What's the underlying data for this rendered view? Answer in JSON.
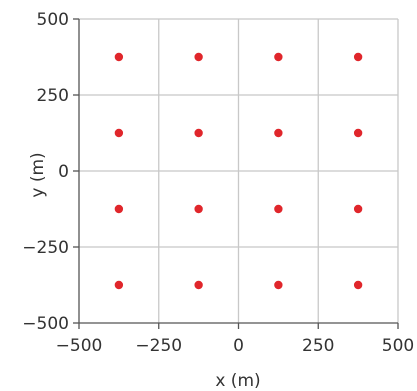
{
  "chart_data": {
    "type": "scatter",
    "xlabel": "x (m)",
    "ylabel": "y (m)",
    "xlim": [
      -500,
      500
    ],
    "ylim": [
      -500,
      500
    ],
    "grid": true,
    "x_ticks": [
      -500,
      -250,
      0,
      250,
      500
    ],
    "y_ticks": [
      -500,
      -250,
      0,
      250,
      500
    ],
    "x_tick_labels": [
      "−500",
      "−250",
      "0",
      "250",
      "500"
    ],
    "y_tick_labels": [
      "−500",
      "−250",
      "0",
      "250",
      "500"
    ],
    "marker_color": "#e0262b",
    "series": [
      {
        "points": [
          {
            "x": -375,
            "y": 375
          },
          {
            "x": -125,
            "y": 375
          },
          {
            "x": 125,
            "y": 375
          },
          {
            "x": 375,
            "y": 375
          },
          {
            "x": -375,
            "y": 125
          },
          {
            "x": -125,
            "y": 125
          },
          {
            "x": 125,
            "y": 125
          },
          {
            "x": 375,
            "y": 125
          },
          {
            "x": -375,
            "y": -125
          },
          {
            "x": -125,
            "y": -125
          },
          {
            "x": 125,
            "y": -125
          },
          {
            "x": 375,
            "y": -125
          },
          {
            "x": -375,
            "y": -375
          },
          {
            "x": -125,
            "y": -375
          },
          {
            "x": 125,
            "y": -375
          },
          {
            "x": 375,
            "y": -375
          }
        ]
      }
    ]
  }
}
